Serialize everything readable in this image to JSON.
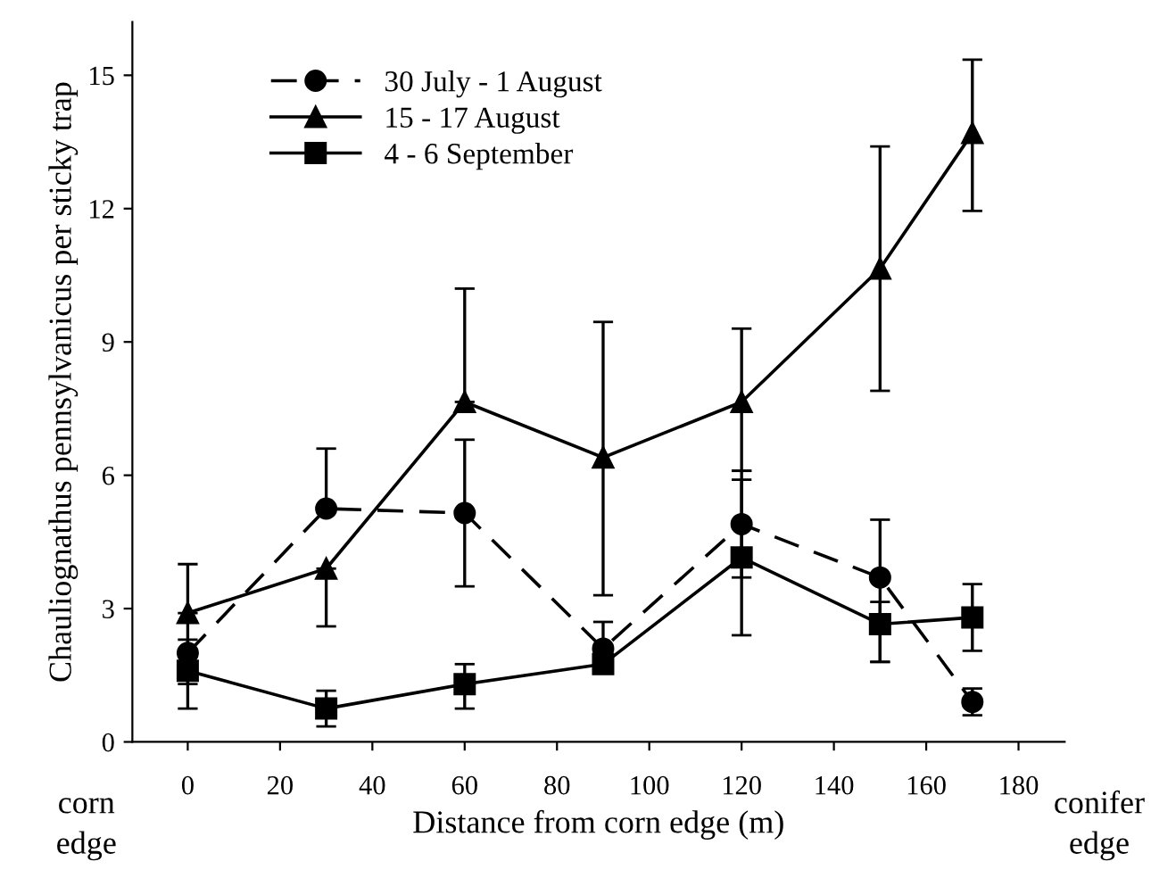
{
  "chart_data": {
    "type": "line",
    "xlabel": "Distance from corn edge (m)",
    "ylabel": "Chauliognathus pennsylvanicus per sticky trap",
    "x": [
      0,
      30,
      60,
      90,
      120,
      150,
      170
    ],
    "series": [
      {
        "name": "30 July - 1 August",
        "color": "#000000",
        "marker": "circle",
        "line_style": "dashed",
        "values": [
          2.0,
          5.25,
          5.15,
          2.1,
          4.9,
          3.7,
          0.9
        ],
        "errors": [
          [
            1.3,
            2.7
          ],
          [
            5.25,
            6.6
          ],
          [
            3.5,
            6.8
          ],
          [
            1.6,
            2.7
          ],
          [
            3.7,
            6.1
          ],
          [
            1.8,
            5.0
          ],
          [
            0.6,
            1.2
          ]
        ]
      },
      {
        "name": "15 - 17 August",
        "color": "#000000",
        "marker": "triangle",
        "line_style": "solid",
        "values": [
          2.9,
          3.9,
          7.65,
          6.4,
          7.65,
          10.65,
          13.7
        ],
        "errors": [
          [
            2.9,
            4.0
          ],
          [
            2.6,
            3.9
          ],
          [
            7.65,
            10.2
          ],
          [
            3.3,
            9.45
          ],
          [
            6.1,
            9.3
          ],
          [
            7.9,
            13.4
          ],
          [
            11.95,
            15.35
          ]
        ]
      },
      {
        "name": "4 - 6 September",
        "color": "#000000",
        "marker": "square",
        "line_style": "solid",
        "values": [
          1.6,
          0.75,
          1.3,
          1.75,
          4.15,
          2.65,
          2.8
        ],
        "errors": [
          [
            0.75,
            2.3
          ],
          [
            0.35,
            1.15
          ],
          [
            0.75,
            1.75
          ],
          null,
          [
            2.4,
            5.9
          ],
          [
            1.8,
            3.15
          ],
          [
            2.05,
            3.55
          ]
        ]
      }
    ],
    "xlim": [
      -12,
      190
    ],
    "ylim": [
      0,
      16.2
    ],
    "xticks": [
      0,
      20,
      40,
      60,
      80,
      100,
      120,
      140,
      160,
      180
    ],
    "yticks": [
      0,
      3,
      6,
      9,
      12,
      15
    ],
    "annotations": [
      "corn\nedge",
      "conifer\nedge"
    ],
    "grid": false,
    "legend": "top left"
  }
}
